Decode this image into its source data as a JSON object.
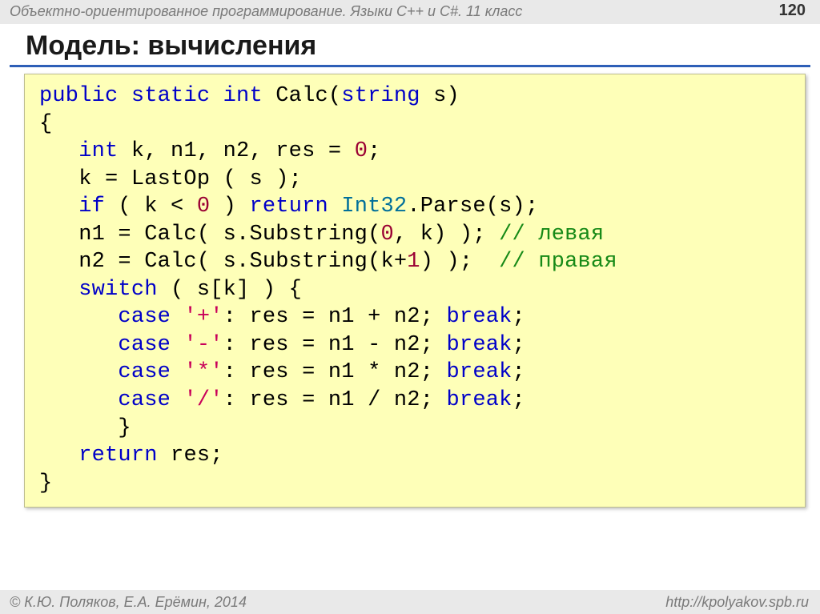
{
  "colors": {
    "background": "#ffffff",
    "header_bg": "#e9e9e9",
    "header_text": "#7a7a7a",
    "title_underline": "#2e5fb7",
    "code_bg": "#feffb8",
    "code_border": "#bdbd8f",
    "code_text": "#000000",
    "keyword": "#0000c8",
    "type": "#006f9a",
    "number": "#9a0033",
    "char_literal": "#c8005a",
    "comment": "#178a17"
  },
  "fonts": {
    "body_family": "Arial",
    "code_family": "Courier New",
    "header_size": 18,
    "title_size": 34,
    "code_size": 27,
    "footer_size": 18
  },
  "header": {
    "subject": "Объектно-ориентированное программирование. Языки C++ и C#. 11 класс",
    "page_number": "120"
  },
  "title": "Модель: вычисления",
  "code": {
    "lines": [
      [
        {
          "t": "public",
          "c": "kw"
        },
        {
          "t": " "
        },
        {
          "t": "static",
          "c": "kw"
        },
        {
          "t": " "
        },
        {
          "t": "int",
          "c": "kw"
        },
        {
          "t": " Calc("
        },
        {
          "t": "string",
          "c": "kw"
        },
        {
          "t": " s)"
        }
      ],
      [
        {
          "t": "{"
        }
      ],
      [
        {
          "t": "   "
        },
        {
          "t": "int",
          "c": "kw"
        },
        {
          "t": " k, n1, n2, res = "
        },
        {
          "t": "0",
          "c": "num"
        },
        {
          "t": ";"
        }
      ],
      [
        {
          "t": "   k = LastOp ( s );"
        }
      ],
      [
        {
          "t": "   "
        },
        {
          "t": "if",
          "c": "kw"
        },
        {
          "t": " ( k < "
        },
        {
          "t": "0",
          "c": "num"
        },
        {
          "t": " ) "
        },
        {
          "t": "return",
          "c": "kw"
        },
        {
          "t": " "
        },
        {
          "t": "Int32",
          "c": "type"
        },
        {
          "t": ".Parse(s);"
        }
      ],
      [
        {
          "t": "   n1 = Calc( s.Substring("
        },
        {
          "t": "0",
          "c": "num"
        },
        {
          "t": ", k) ); "
        },
        {
          "t": "// левая",
          "c": "cmt"
        }
      ],
      [
        {
          "t": "   n2 = Calc( s.Substring(k+"
        },
        {
          "t": "1",
          "c": "num"
        },
        {
          "t": ") );  "
        },
        {
          "t": "// правая",
          "c": "cmt"
        }
      ],
      [
        {
          "t": "   "
        },
        {
          "t": "switch",
          "c": "kw"
        },
        {
          "t": " ( s[k] ) {"
        }
      ],
      [
        {
          "t": "      "
        },
        {
          "t": "case",
          "c": "kw"
        },
        {
          "t": " "
        },
        {
          "t": "'+'",
          "c": "char"
        },
        {
          "t": ": res = n1 + n2; "
        },
        {
          "t": "break",
          "c": "kw"
        },
        {
          "t": ";"
        }
      ],
      [
        {
          "t": "      "
        },
        {
          "t": "case",
          "c": "kw"
        },
        {
          "t": " "
        },
        {
          "t": "'-'",
          "c": "char"
        },
        {
          "t": ": res = n1 - n2; "
        },
        {
          "t": "break",
          "c": "kw"
        },
        {
          "t": ";"
        }
      ],
      [
        {
          "t": "      "
        },
        {
          "t": "case",
          "c": "kw"
        },
        {
          "t": " "
        },
        {
          "t": "'*'",
          "c": "char"
        },
        {
          "t": ": res = n1 * n2; "
        },
        {
          "t": "break",
          "c": "kw"
        },
        {
          "t": ";"
        }
      ],
      [
        {
          "t": "      "
        },
        {
          "t": "case",
          "c": "kw"
        },
        {
          "t": " "
        },
        {
          "t": "'/'",
          "c": "char"
        },
        {
          "t": ": res = n1 / n2; "
        },
        {
          "t": "break",
          "c": "kw"
        },
        {
          "t": ";"
        }
      ],
      [
        {
          "t": "      }"
        }
      ],
      [
        {
          "t": "   "
        },
        {
          "t": "return",
          "c": "kw"
        },
        {
          "t": " res;"
        }
      ],
      [
        {
          "t": "}"
        }
      ]
    ]
  },
  "footer": {
    "copyright": "© К.Ю. Поляков, Е.А. Ерёмин, 2014",
    "url": "http://kpolyakov.spb.ru"
  }
}
